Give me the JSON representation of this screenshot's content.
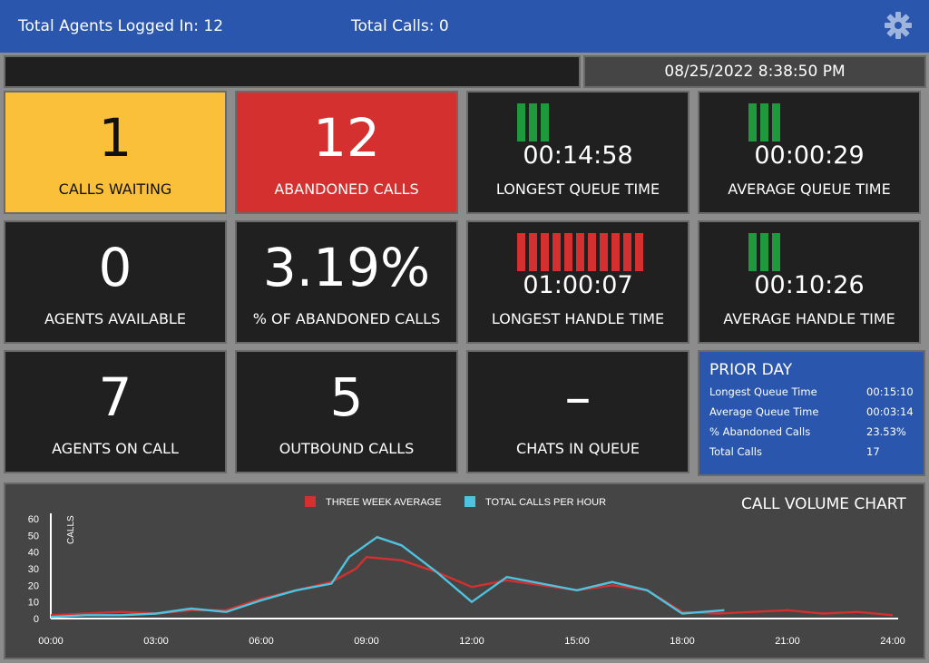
{
  "header": {
    "agents_logged_in": "Total Agents Logged In: 12",
    "total_calls": "Total Calls: 0",
    "settings_icon": "gear-icon"
  },
  "status_bar": {
    "message": "",
    "datetime": "08/25/2022 8:38:50 PM"
  },
  "tiles": {
    "calls_waiting": {
      "value": "1",
      "label": "CALLS WAITING"
    },
    "abandoned_calls": {
      "value": "12",
      "label": "ABANDONED CALLS"
    },
    "longest_queue_time": {
      "value": "00:14:58",
      "label": "LONGEST QUEUE TIME",
      "bar_count": 3,
      "bar_color": "#1e9a3d"
    },
    "average_queue_time": {
      "value": "00:00:29",
      "label": "AVERAGE QUEUE TIME",
      "bar_count": 3,
      "bar_color": "#1e9a3d"
    },
    "agents_available": {
      "value": "0",
      "label": "AGENTS AVAILABLE"
    },
    "pct_abandoned": {
      "value": "3.19%",
      "label": "% OF ABANDONED CALLS"
    },
    "longest_handle_time": {
      "value": "01:00:07",
      "label": "LONGEST HANDLE TIME",
      "bar_count": 11,
      "bar_color": "#d3302f"
    },
    "average_handle_time": {
      "value": "00:10:26",
      "label": "AVERAGE HANDLE TIME",
      "bar_count": 3,
      "bar_color": "#1e9a3d"
    },
    "agents_on_call": {
      "value": "7",
      "label": "AGENTS ON CALL"
    },
    "outbound_calls": {
      "value": "5",
      "label": "OUTBOUND CALLS"
    },
    "chats_in_queue": {
      "value": "–",
      "label": "CHATS IN QUEUE"
    }
  },
  "prior_day": {
    "title": "PRIOR DAY",
    "rows": [
      {
        "label": "Longest Queue Time",
        "value": "00:15:10"
      },
      {
        "label": "Average Queue Time",
        "value": "00:03:14"
      },
      {
        "label": "% Abandoned Calls",
        "value": "23.53%"
      },
      {
        "label": "Total Calls",
        "value": "17"
      }
    ]
  },
  "colors": {
    "header_blue": "#2a56ad",
    "yellow": "#fbc03a",
    "red": "#d3302f",
    "green": "#1e9a3d",
    "series_avg": "#d3302f",
    "series_calls": "#4ec3e0"
  },
  "chart_data": {
    "type": "line",
    "title": "CALL VOLUME CHART",
    "xlabel": "",
    "ylabel": "CALLS",
    "xlim": [
      0,
      24
    ],
    "ylim": [
      0,
      60
    ],
    "x_ticks": [
      "00:00",
      "03:00",
      "06:00",
      "09:00",
      "12:00",
      "15:00",
      "18:00",
      "21:00",
      "24:00"
    ],
    "y_ticks": [
      "0",
      "10",
      "20",
      "30",
      "40",
      "50",
      "60"
    ],
    "legend_position": "top",
    "series": [
      {
        "name": "THREE WEEK AVERAGE",
        "color": "#d3302f",
        "x": [
          0,
          1,
          2,
          3,
          4,
          5,
          6,
          7,
          8,
          8.7,
          9,
          10,
          11,
          12,
          13,
          14,
          15,
          16,
          17,
          18,
          19,
          20,
          21,
          22,
          23,
          24
        ],
        "y": [
          2,
          3,
          4,
          3,
          5,
          5,
          12,
          17,
          22,
          30,
          37,
          35,
          28,
          19,
          23,
          20,
          17,
          20,
          17,
          4,
          3,
          4,
          5,
          3,
          4,
          2
        ]
      },
      {
        "name": "TOTAL CALLS PER HOUR",
        "color": "#4ec3e0",
        "x": [
          0,
          1,
          2,
          3,
          4,
          5,
          6,
          7,
          8,
          8.5,
          9.3,
          10,
          11,
          12,
          13,
          14,
          15,
          16,
          17,
          18,
          19.2
        ],
        "y": [
          1,
          2,
          2,
          3,
          6,
          4,
          11,
          17,
          21,
          37,
          49,
          44,
          28,
          10,
          25,
          21,
          17,
          22,
          17,
          3,
          5
        ]
      }
    ]
  }
}
